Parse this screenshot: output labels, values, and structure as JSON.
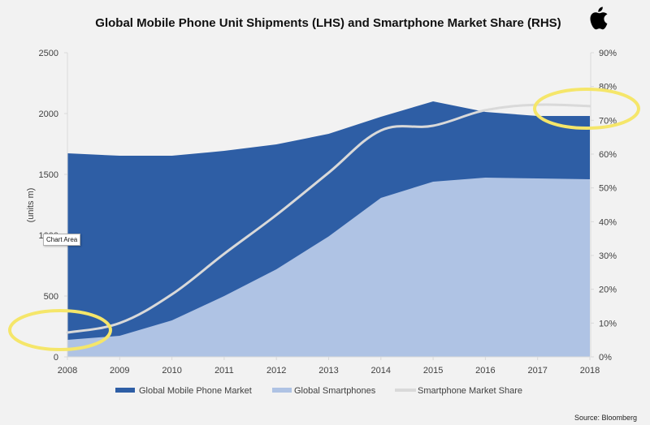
{
  "chart_data": {
    "type": "area",
    "title": "Global Mobile Phone Unit Shipments (LHS) and Smartphone Market Share (RHS)",
    "x": [
      "2008",
      "2009",
      "2010",
      "2011",
      "2012",
      "2013",
      "2014",
      "2015",
      "2016",
      "2017",
      "2018"
    ],
    "ylabel": "(units m)",
    "ylim": [
      0,
      2500
    ],
    "yticks": [
      "0",
      "500",
      "1000",
      "1500",
      "2000",
      "2500"
    ],
    "y2lim": [
      0,
      90
    ],
    "y2ticks": [
      "0%",
      "10%",
      "20%",
      "30%",
      "40%",
      "50%",
      "60%",
      "70%",
      "80%",
      "90%"
    ],
    "grid": false,
    "legend_position": "bottom",
    "series": [
      {
        "name": "Global Mobile Phone Market",
        "type": "area",
        "axis": "left",
        "color": "#2e5ea5",
        "values": [
          1673,
          1653,
          1653,
          1693,
          1747,
          1833,
          1973,
          2100,
          2013,
          1980,
          1980
        ]
      },
      {
        "name": "Global Smartphones",
        "type": "area",
        "axis": "left",
        "color": "#afc3e4",
        "values": [
          140,
          173,
          300,
          500,
          720,
          990,
          1307,
          1440,
          1473,
          1467,
          1460
        ]
      },
      {
        "name": "Smartphone Market Share",
        "type": "line",
        "axis": "right",
        "unit": "%",
        "color": "#d9d9d9",
        "values": [
          7.2,
          10,
          18.5,
          30.5,
          42,
          54.5,
          67,
          68.4,
          73,
          74.6,
          74.2
        ]
      }
    ],
    "annotations": [
      {
        "type": "highlight-ellipse",
        "color": "#f5e66a",
        "around": "2008 market share"
      },
      {
        "type": "highlight-ellipse",
        "color": "#f5e66a",
        "around": "2017-2018 market share"
      }
    ],
    "source": "Source: Bloomberg"
  },
  "tooltip": "Chart Area",
  "logo": "apple-logo"
}
